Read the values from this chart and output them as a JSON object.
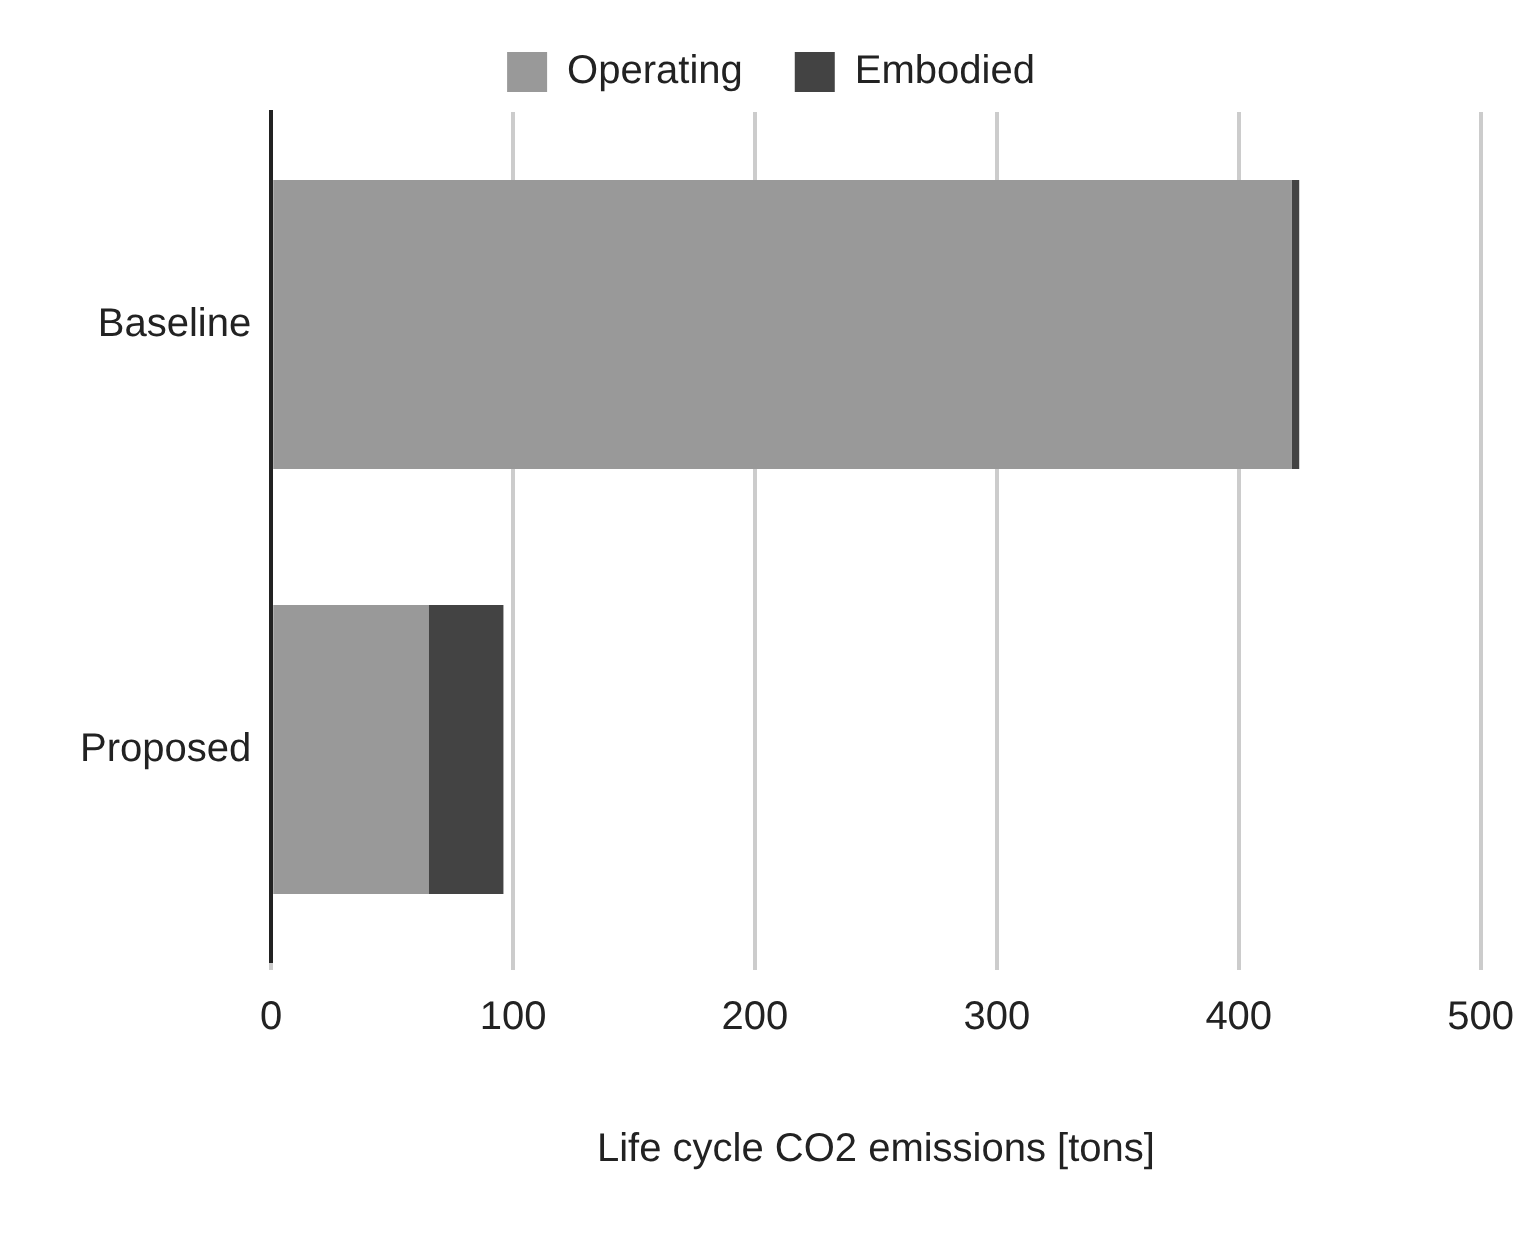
{
  "chart_data": {
    "type": "bar",
    "orientation": "horizontal",
    "stacked": true,
    "xlabel": "Life cycle CO2 emissions [tons]",
    "categories": [
      "Baseline",
      "Proposed"
    ],
    "series": [
      {
        "name": "Operating",
        "color": "#999999",
        "values": [
          422,
          65
        ]
      },
      {
        "name": "Embodied",
        "color": "#434343",
        "values": [
          3,
          31
        ]
      }
    ],
    "xlim": [
      0,
      500
    ],
    "xticks": [
      0,
      100,
      200,
      300,
      400,
      500
    ],
    "grid": "x",
    "legend": "top"
  }
}
